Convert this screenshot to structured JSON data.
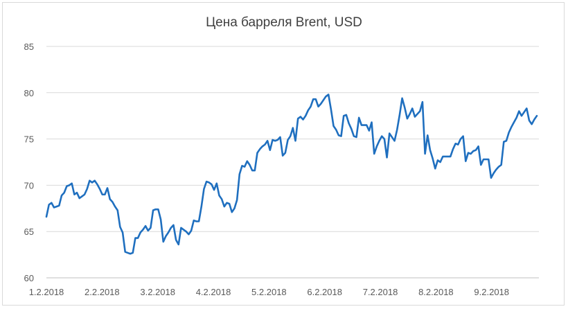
{
  "chart_data": {
    "type": "line",
    "title": "Цена барреля Brent, USD",
    "xlabel": "",
    "ylabel": "",
    "ylim": [
      60,
      85
    ],
    "y_ticks": [
      60,
      65,
      70,
      75,
      80,
      85
    ],
    "x_tick_labels": [
      "1.2.2018",
      "2.2.2018",
      "3.2.2018",
      "4.2.2018",
      "5.2.2018",
      "6.2.2018",
      "7.2.2018",
      "8.2.2018",
      "9.2.2018"
    ],
    "grid": "horizontal",
    "legend": "none",
    "line_color": "#1f6fbf",
    "series": [
      {
        "values": [
          66.6,
          67.9,
          68.1,
          67.6,
          67.7,
          67.8,
          68.9,
          69.2,
          69.9,
          70.0,
          70.2,
          69.0,
          69.2,
          68.6,
          68.8,
          69.0,
          69.6,
          70.5,
          70.3,
          70.5,
          70.1,
          69.6,
          69.0,
          69.0,
          69.7,
          68.5,
          68.2,
          67.7,
          67.3,
          65.5,
          64.9,
          62.8,
          62.7,
          62.6,
          62.7,
          64.3,
          64.3,
          64.9,
          65.2,
          65.6,
          65.1,
          65.4,
          67.3,
          67.4,
          67.4,
          66.3,
          63.9,
          64.5,
          64.9,
          65.4,
          65.7,
          64.1,
          63.6,
          65.4,
          65.2,
          65.0,
          64.7,
          65.1,
          66.2,
          66.1,
          66.1,
          67.7,
          69.6,
          70.4,
          70.3,
          70.1,
          69.5,
          70.2,
          68.9,
          68.5,
          67.7,
          68.1,
          68.0,
          67.1,
          67.5,
          68.4,
          71.2,
          72.1,
          72.0,
          72.6,
          72.2,
          71.6,
          71.6,
          73.5,
          73.9,
          74.2,
          74.4,
          74.8,
          73.8,
          74.9,
          74.8,
          74.9,
          75.2,
          73.2,
          73.5,
          74.9,
          75.3,
          76.2,
          74.8,
          77.2,
          77.4,
          77.1,
          77.5,
          78.1,
          78.5,
          79.3,
          79.3,
          78.5,
          78.8,
          79.2,
          79.6,
          79.8,
          78.2,
          76.4,
          76.0,
          75.4,
          75.3,
          77.5,
          77.6,
          76.7,
          76.1,
          75.3,
          75.2,
          77.3,
          76.5,
          76.5,
          76.5,
          75.9,
          76.8,
          73.4,
          74.2,
          74.8,
          75.3,
          75.0,
          73.0,
          75.6,
          75.2,
          74.8,
          76.0,
          77.6,
          79.4,
          78.4,
          77.2,
          77.7,
          78.3,
          77.4,
          77.7,
          78.0,
          79.0,
          73.4,
          75.4,
          73.8,
          72.9,
          71.8,
          72.7,
          72.5,
          73.1,
          73.1,
          73.1,
          73.1,
          73.9,
          74.5,
          74.4,
          75.0,
          75.3,
          72.6,
          73.5,
          73.4,
          73.7,
          73.8,
          74.2,
          72.2,
          72.8,
          72.8,
          72.8,
          70.8,
          71.3,
          71.7,
          72.0,
          72.2,
          74.7,
          74.8,
          75.7,
          76.3,
          76.8,
          77.3,
          78.0,
          77.5,
          77.9,
          78.3,
          77.0,
          76.6,
          77.1,
          77.5
        ]
      }
    ]
  }
}
